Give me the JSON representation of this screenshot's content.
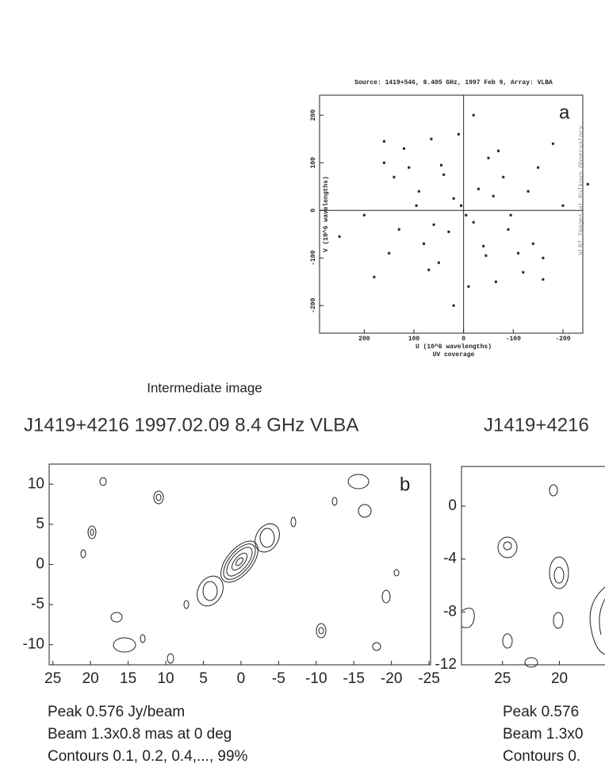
{
  "panel_a": {
    "title": "Source: 1419+546, 8.405 GHz, 1997 Feb 9, Array: VLBA",
    "label": "a",
    "xlabel": "U (10^6 wavelengths)",
    "ylabel": "V (10^6 wavelengths)",
    "caption": "UV coverage",
    "side_text": "VLBI Images at Pulkovo Observatory",
    "xlim": [
      290,
      -240
    ],
    "ylim": [
      -258,
      242
    ],
    "xticks": [
      200,
      100,
      0,
      -100,
      -200
    ],
    "yticks": [
      200,
      100,
      0,
      -100,
      -200
    ],
    "points": {
      "u": [
        160,
        -160,
        120,
        -120,
        65,
        -65,
        -70,
        70,
        -150,
        150,
        110,
        -110,
        200,
        -200,
        250,
        -250,
        -160,
        160,
        40,
        -40,
        90,
        -90,
        20,
        -20,
        5,
        -5,
        -30,
        30,
        -60,
        60,
        130,
        -130,
        80,
        -80,
        10,
        -10,
        -140,
        140,
        50,
        -50,
        -95,
        95,
        20,
        -20,
        180,
        -180,
        -45,
        45
      ],
      "v": [
        145,
        -145,
        130,
        -130,
        150,
        -150,
        125,
        -125,
        90,
        -90,
        90,
        -90,
        -10,
        10,
        -55,
        55,
        -100,
        100,
        75,
        -75,
        40,
        -40,
        25,
        -25,
        10,
        -10,
        45,
        -45,
        30,
        -30,
        -40,
        40,
        -70,
        70,
        160,
        -160,
        -70,
        70,
        -110,
        110,
        -10,
        10,
        -200,
        200,
        -140,
        140,
        -95,
        95
      ]
    }
  },
  "intermediate_label": "Intermediate image",
  "panel_b": {
    "title": "J1419+4216 1997.02.09  8.4 GHz  VLBA",
    "label": "b",
    "xlim": [
      25.5,
      -25.2
    ],
    "ylim": [
      -12.5,
      12.5
    ],
    "xticks": [
      25,
      20,
      15,
      10,
      5,
      0,
      -5,
      -10,
      -15,
      -20,
      -25
    ],
    "yticks": [
      10,
      5,
      0,
      -5,
      -10
    ],
    "notes": [
      "Peak 0.576 Jy/beam",
      "Beam 1.3x0.8 mas at 0 deg",
      "Contours 0.1, 0.2, 0.4,..., 99%"
    ]
  },
  "panel_c": {
    "title": "J1419+4216",
    "xlim": [
      28.6,
      16
    ],
    "ylim": [
      -12,
      3
    ],
    "xticks": [
      25,
      20
    ],
    "yticks": [
      0,
      -4,
      -8,
      -12
    ],
    "notes": [
      "Peak 0.576",
      "Beam 1.3x0",
      "Contours 0."
    ]
  }
}
